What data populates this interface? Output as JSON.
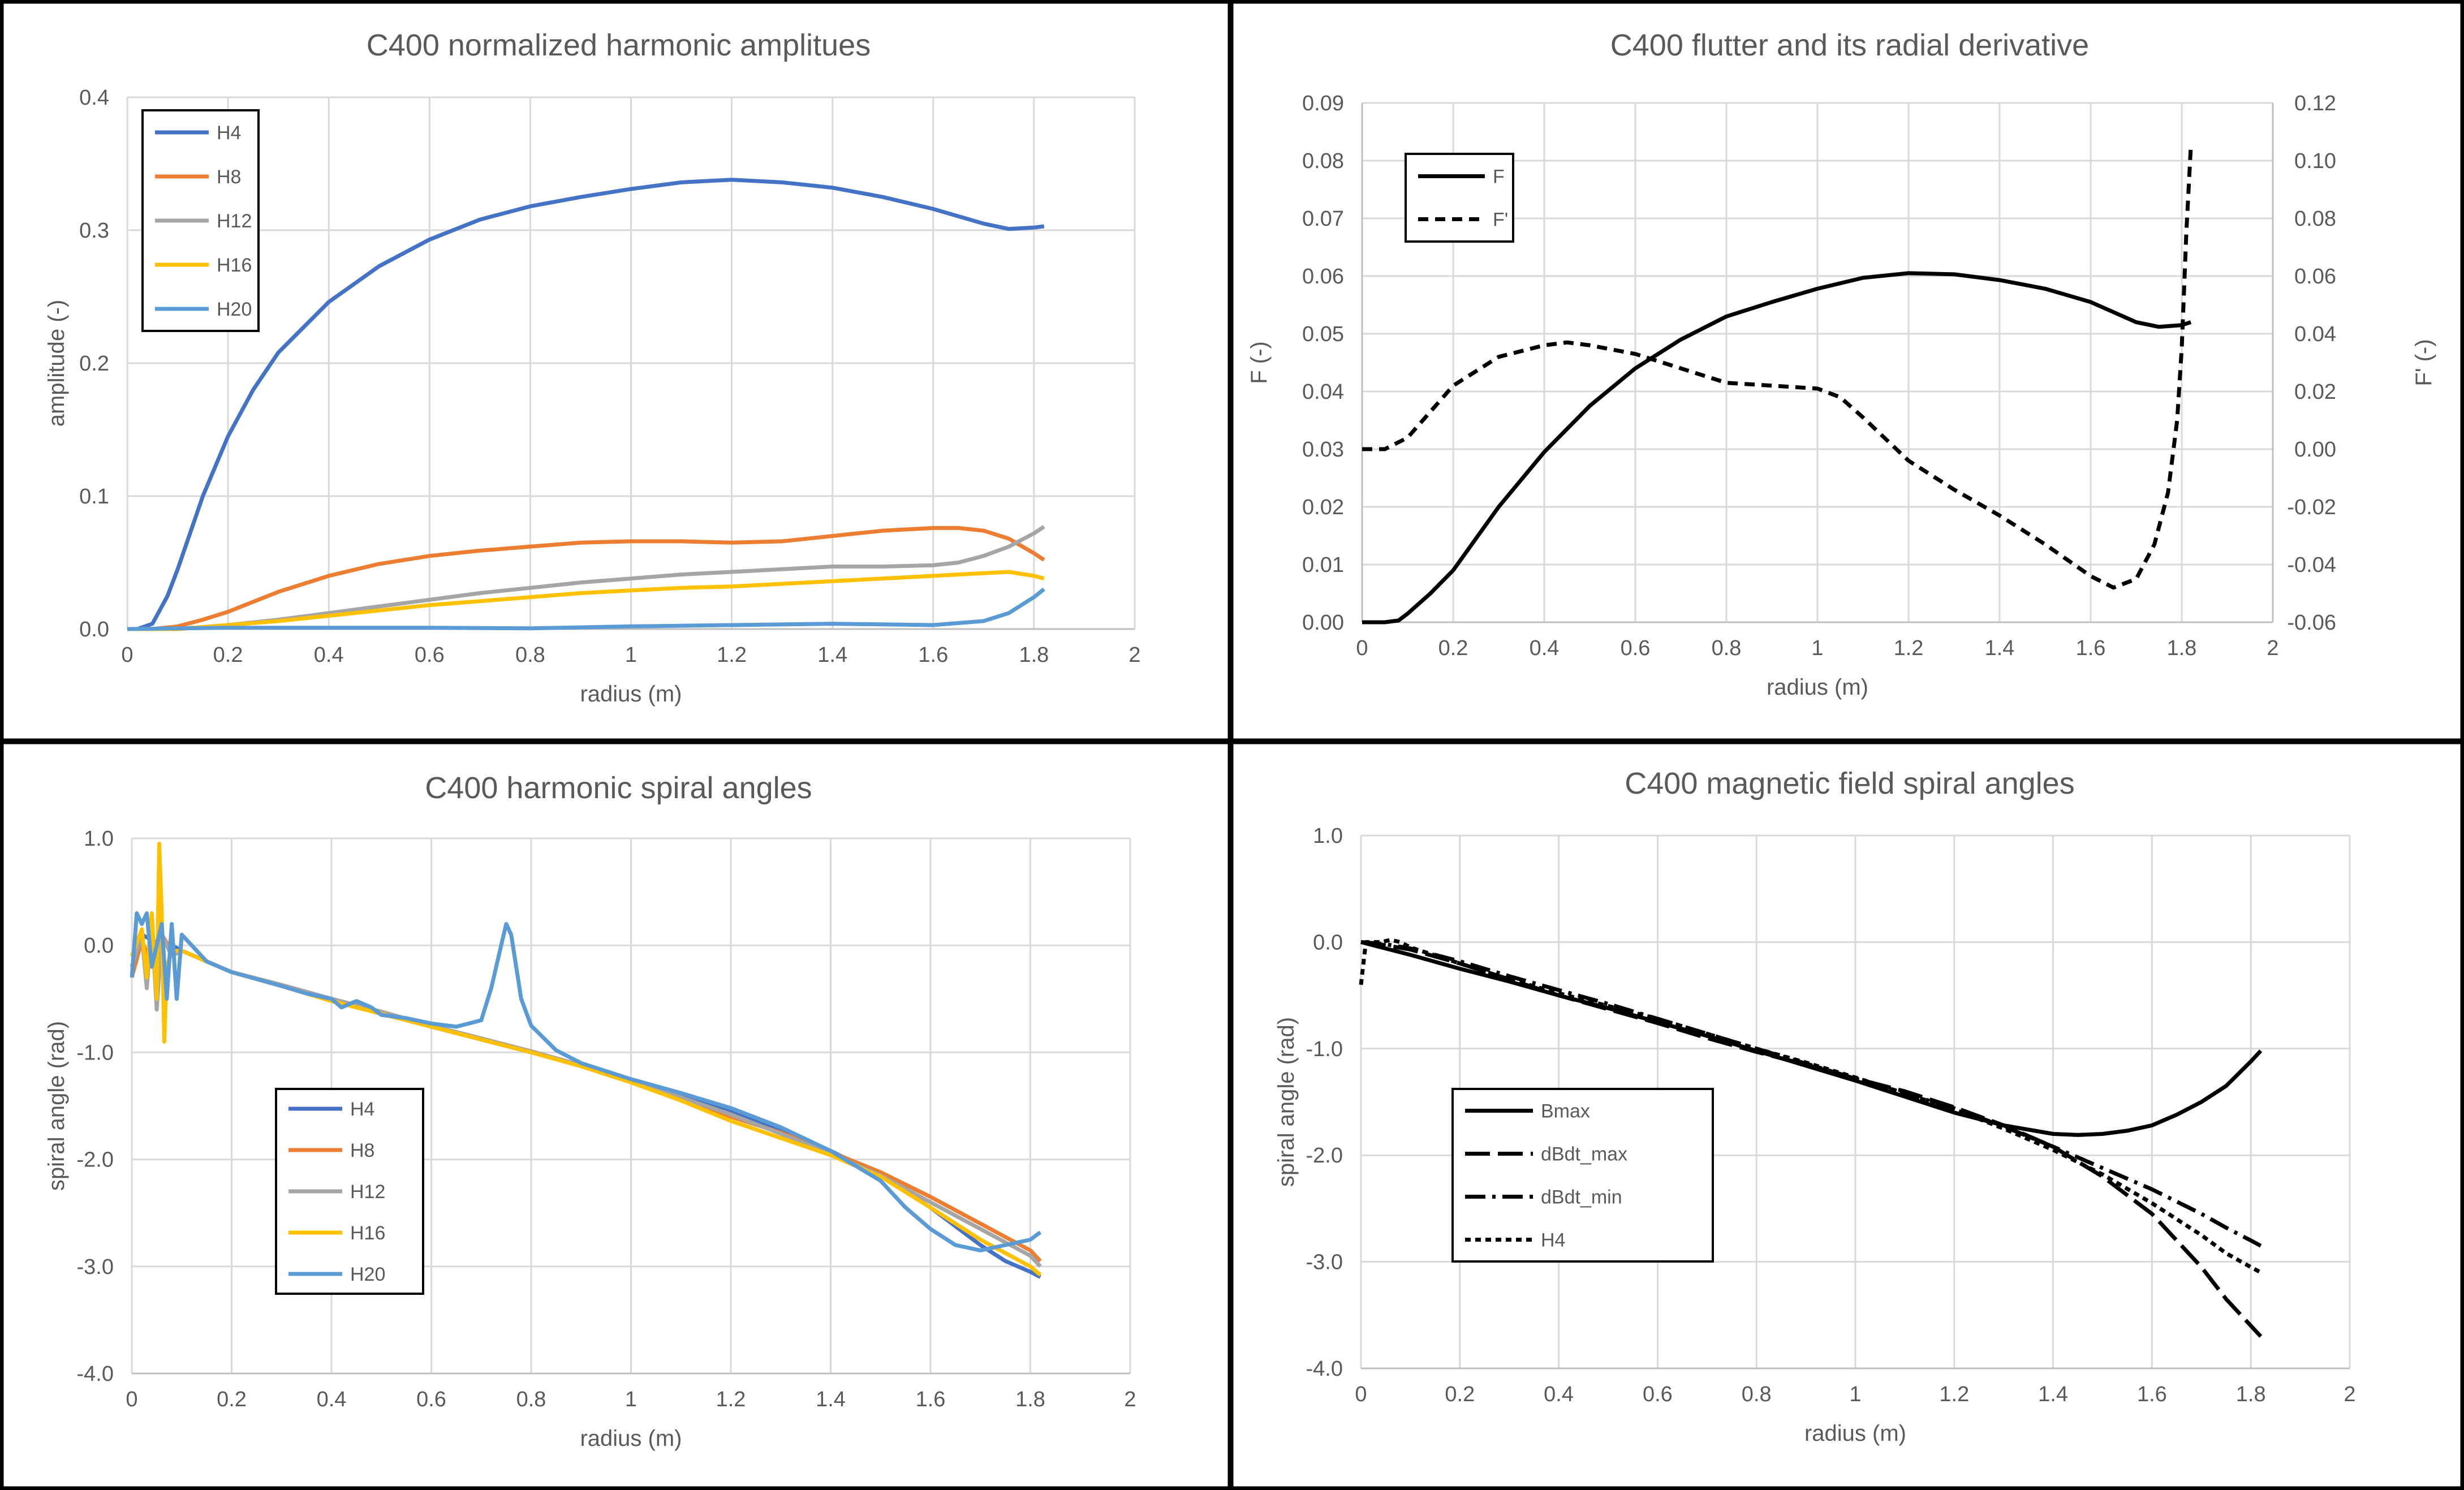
{
  "colors": {
    "H4": "#4472C4",
    "H8": "#ED7D31",
    "H12": "#A5A5A5",
    "H16": "#FFC000",
    "H20": "#5B9BD5",
    "black": "#000000"
  },
  "chart_data": [
    {
      "type": "line",
      "title": "C400 normalized harmonic amplitues",
      "xlabel": "radius (m)",
      "ylabel": "amplitude (-)",
      "xlim": [
        0,
        2
      ],
      "ylim": [
        0,
        0.4
      ],
      "xticks": [
        "0",
        "0.2",
        "0.4",
        "0.6",
        "0.8",
        "1",
        "1.2",
        "1.4",
        "1.6",
        "1.8",
        "2"
      ],
      "yticks": [
        "0.0",
        "0.1",
        "0.2",
        "0.3",
        "0.4"
      ],
      "legend": "top-left",
      "series": [
        {
          "name": "H4",
          "color": "#4472C4",
          "x": [
            0,
            0.02,
            0.05,
            0.08,
            0.1,
            0.15,
            0.2,
            0.25,
            0.3,
            0.4,
            0.5,
            0.6,
            0.7,
            0.8,
            0.9,
            1.0,
            1.1,
            1.2,
            1.3,
            1.4,
            1.5,
            1.6,
            1.7,
            1.75,
            1.8,
            1.82
          ],
          "y": [
            0,
            0,
            0.004,
            0.025,
            0.045,
            0.1,
            0.145,
            0.18,
            0.208,
            0.246,
            0.273,
            0.293,
            0.308,
            0.318,
            0.325,
            0.331,
            0.336,
            0.338,
            0.336,
            0.332,
            0.325,
            0.316,
            0.305,
            0.301,
            0.302,
            0.303
          ]
        },
        {
          "name": "H8",
          "color": "#ED7D31",
          "x": [
            0,
            0.05,
            0.1,
            0.15,
            0.2,
            0.3,
            0.4,
            0.5,
            0.6,
            0.7,
            0.8,
            0.9,
            1.0,
            1.1,
            1.2,
            1.3,
            1.4,
            1.5,
            1.6,
            1.65,
            1.7,
            1.75,
            1.8,
            1.82
          ],
          "y": [
            0,
            0,
            0.002,
            0.007,
            0.013,
            0.028,
            0.04,
            0.049,
            0.055,
            0.059,
            0.062,
            0.065,
            0.066,
            0.066,
            0.065,
            0.066,
            0.07,
            0.074,
            0.076,
            0.076,
            0.074,
            0.068,
            0.057,
            0.052
          ]
        },
        {
          "name": "H12",
          "color": "#A5A5A5",
          "x": [
            0,
            0.1,
            0.2,
            0.3,
            0.4,
            0.5,
            0.6,
            0.7,
            0.8,
            0.9,
            1.0,
            1.1,
            1.2,
            1.3,
            1.4,
            1.5,
            1.6,
            1.65,
            1.7,
            1.75,
            1.8,
            1.82
          ],
          "y": [
            0,
            0,
            0.003,
            0.007,
            0.012,
            0.017,
            0.022,
            0.027,
            0.031,
            0.035,
            0.038,
            0.041,
            0.043,
            0.045,
            0.047,
            0.047,
            0.048,
            0.05,
            0.055,
            0.062,
            0.072,
            0.077
          ]
        },
        {
          "name": "H16",
          "color": "#FFC000",
          "x": [
            0,
            0.1,
            0.2,
            0.3,
            0.4,
            0.5,
            0.6,
            0.7,
            0.8,
            0.9,
            1.0,
            1.1,
            1.2,
            1.3,
            1.4,
            1.5,
            1.6,
            1.7,
            1.75,
            1.8,
            1.82
          ],
          "y": [
            0,
            0,
            0.003,
            0.006,
            0.01,
            0.014,
            0.018,
            0.021,
            0.024,
            0.027,
            0.029,
            0.031,
            0.032,
            0.034,
            0.036,
            0.038,
            0.04,
            0.042,
            0.043,
            0.04,
            0.038
          ]
        },
        {
          "name": "H20",
          "color": "#5B9BD5",
          "x": [
            0,
            0.2,
            0.4,
            0.6,
            0.8,
            1.0,
            1.2,
            1.4,
            1.6,
            1.7,
            1.75,
            1.8,
            1.82
          ],
          "y": [
            0,
            0.001,
            0.001,
            0.001,
            0.0005,
            0.002,
            0.003,
            0.004,
            0.003,
            0.006,
            0.012,
            0.024,
            0.03
          ]
        }
      ]
    },
    {
      "type": "line",
      "title": "C400 flutter and its radial derivative",
      "xlabel": "radius (m)",
      "ylabel": "F (-)",
      "y2label": "F' (-)",
      "xlim": [
        0,
        2
      ],
      "ylim": [
        0,
        0.09
      ],
      "y2lim": [
        -0.06,
        0.12
      ],
      "xticks": [
        "0",
        "0.2",
        "0.4",
        "0.6",
        "0.8",
        "1",
        "1.2",
        "1.4",
        "1.6",
        "1.8",
        "2"
      ],
      "yticks": [
        "0.00",
        "0.01",
        "0.02",
        "0.03",
        "0.04",
        "0.05",
        "0.06",
        "0.07",
        "0.08",
        "0.09"
      ],
      "y2ticks": [
        "-0.06",
        "-0.04",
        "-0.02",
        "0.00",
        "0.02",
        "0.04",
        "0.06",
        "0.08",
        "0.10",
        "0.12"
      ],
      "legend": "top-left",
      "series": [
        {
          "name": "F",
          "color": "#000000",
          "dash": "solid",
          "axis": "left",
          "x": [
            0,
            0.05,
            0.08,
            0.1,
            0.15,
            0.2,
            0.3,
            0.4,
            0.5,
            0.6,
            0.7,
            0.8,
            0.9,
            1.0,
            1.1,
            1.2,
            1.3,
            1.4,
            1.5,
            1.6,
            1.7,
            1.75,
            1.8,
            1.82
          ],
          "y": [
            0,
            0,
            0.0003,
            0.0015,
            0.005,
            0.009,
            0.02,
            0.0295,
            0.0375,
            0.044,
            0.049,
            0.053,
            0.0555,
            0.0578,
            0.0597,
            0.0605,
            0.0603,
            0.0593,
            0.0578,
            0.0555,
            0.052,
            0.0512,
            0.0515,
            0.052
          ]
        },
        {
          "name": "F'",
          "color": "#000000",
          "dash": "dashed",
          "axis": "right",
          "x": [
            0,
            0.05,
            0.1,
            0.15,
            0.2,
            0.3,
            0.4,
            0.45,
            0.5,
            0.6,
            0.7,
            0.8,
            0.9,
            1.0,
            1.05,
            1.1,
            1.2,
            1.3,
            1.4,
            1.5,
            1.6,
            1.65,
            1.7,
            1.74,
            1.77,
            1.79,
            1.8,
            1.81,
            1.82
          ],
          "y": [
            0,
            0,
            0.004,
            0.013,
            0.022,
            0.032,
            0.036,
            0.037,
            0.036,
            0.033,
            0.028,
            0.023,
            0.022,
            0.021,
            0.018,
            0.011,
            -0.004,
            -0.014,
            -0.023,
            -0.033,
            -0.044,
            -0.048,
            -0.045,
            -0.033,
            -0.015,
            0.01,
            0.035,
            0.075,
            0.105
          ]
        }
      ]
    },
    {
      "type": "line",
      "title": "C400 harmonic spiral angles",
      "xlabel": "radius (m)",
      "ylabel": "spiral angle (rad)",
      "xlim": [
        0,
        2
      ],
      "ylim": [
        -4,
        1
      ],
      "xticks": [
        "0",
        "0.2",
        "0.4",
        "0.6",
        "0.8",
        "1",
        "1.2",
        "1.4",
        "1.6",
        "1.8",
        "2"
      ],
      "yticks": [
        "-4.0",
        "-3.0",
        "-2.0",
        "-1.0",
        "0.0",
        "1.0"
      ],
      "legend": "center-left",
      "series": [
        {
          "name": "H4",
          "color": "#4472C4",
          "x": [
            0,
            0.02,
            0.04,
            0.06,
            0.08,
            0.1,
            0.15,
            0.2,
            0.3,
            0.4,
            0.5,
            0.6,
            0.7,
            0.8,
            0.9,
            1.0,
            1.1,
            1.2,
            1.3,
            1.4,
            1.5,
            1.6,
            1.7,
            1.75,
            1.8,
            1.82
          ],
          "y": [
            -0.2,
            0.1,
            0.05,
            0.0,
            0.0,
            -0.05,
            -0.15,
            -0.25,
            -0.37,
            -0.5,
            -0.63,
            -0.76,
            -0.88,
            -1.0,
            -1.12,
            -1.26,
            -1.4,
            -1.55,
            -1.72,
            -1.92,
            -2.15,
            -2.45,
            -2.8,
            -2.95,
            -3.05,
            -3.1
          ]
        },
        {
          "name": "H8",
          "color": "#ED7D31",
          "x": [
            0,
            0.02,
            0.04,
            0.06,
            0.08,
            0.1,
            0.2,
            0.3,
            0.4,
            0.5,
            0.6,
            0.7,
            0.8,
            0.9,
            1.0,
            1.1,
            1.2,
            1.3,
            1.4,
            1.5,
            1.6,
            1.7,
            1.8,
            1.82
          ],
          "y": [
            -0.3,
            0.05,
            -0.2,
            0.1,
            -0.05,
            -0.05,
            -0.25,
            -0.37,
            -0.5,
            -0.62,
            -0.75,
            -0.87,
            -0.99,
            -1.12,
            -1.26,
            -1.42,
            -1.6,
            -1.75,
            -1.93,
            -2.12,
            -2.35,
            -2.6,
            -2.85,
            -2.95
          ]
        },
        {
          "name": "H12",
          "color": "#A5A5A5",
          "x": [
            0,
            0.02,
            0.03,
            0.04,
            0.05,
            0.06,
            0.08,
            0.1,
            0.2,
            0.3,
            0.4,
            0.5,
            0.6,
            0.7,
            0.8,
            0.9,
            1.0,
            1.1,
            1.2,
            1.3,
            1.4,
            1.5,
            1.6,
            1.7,
            1.8,
            1.82
          ],
          "y": [
            -0.2,
            0.1,
            -0.4,
            0.2,
            -0.6,
            0.1,
            -0.1,
            -0.05,
            -0.25,
            -0.37,
            -0.5,
            -0.62,
            -0.75,
            -0.87,
            -0.99,
            -1.12,
            -1.26,
            -1.42,
            -1.58,
            -1.76,
            -1.95,
            -2.15,
            -2.4,
            -2.65,
            -2.9,
            -3.0
          ]
        },
        {
          "name": "H16",
          "color": "#FFC000",
          "x": [
            0,
            0.02,
            0.03,
            0.04,
            0.05,
            0.055,
            0.06,
            0.065,
            0.07,
            0.08,
            0.1,
            0.2,
            0.3,
            0.4,
            0.5,
            0.6,
            0.7,
            0.8,
            0.9,
            1.0,
            1.1,
            1.2,
            1.3,
            1.4,
            1.5,
            1.6,
            1.7,
            1.8,
            1.82
          ],
          "y": [
            -0.1,
            0.15,
            -0.3,
            0.3,
            -0.5,
            0.95,
            0.3,
            -0.9,
            -0.2,
            -0.05,
            -0.05,
            -0.25,
            -0.38,
            -0.52,
            -0.64,
            -0.76,
            -0.88,
            -1.0,
            -1.13,
            -1.28,
            -1.45,
            -1.64,
            -1.8,
            -1.96,
            -2.16,
            -2.45,
            -2.75,
            -3.0,
            -3.08
          ]
        },
        {
          "name": "H20",
          "color": "#5B9BD5",
          "x": [
            0,
            0.01,
            0.02,
            0.03,
            0.04,
            0.05,
            0.06,
            0.07,
            0.08,
            0.09,
            0.1,
            0.11,
            0.15,
            0.2,
            0.3,
            0.35,
            0.4,
            0.42,
            0.45,
            0.48,
            0.5,
            0.55,
            0.6,
            0.65,
            0.7,
            0.72,
            0.74,
            0.75,
            0.76,
            0.78,
            0.8,
            0.85,
            0.9,
            1.0,
            1.1,
            1.2,
            1.3,
            1.4,
            1.5,
            1.55,
            1.6,
            1.65,
            1.7,
            1.75,
            1.8,
            1.82
          ],
          "y": [
            -0.3,
            0.3,
            0.2,
            0.3,
            -0.2,
            0.0,
            0.2,
            -0.5,
            0.2,
            -0.5,
            0.1,
            0.05,
            -0.15,
            -0.25,
            -0.38,
            -0.45,
            -0.5,
            -0.58,
            -0.52,
            -0.58,
            -0.65,
            -0.68,
            -0.73,
            -0.76,
            -0.7,
            -0.4,
            0.0,
            0.2,
            0.1,
            -0.5,
            -0.75,
            -0.98,
            -1.1,
            -1.25,
            -1.38,
            -1.52,
            -1.7,
            -1.92,
            -2.2,
            -2.45,
            -2.65,
            -2.8,
            -2.85,
            -2.8,
            -2.75,
            -2.68
          ]
        }
      ]
    },
    {
      "type": "line",
      "title": "C400 magnetic field spiral angles",
      "xlabel": "radius (m)",
      "ylabel": "spiral angle (rad)",
      "xlim": [
        0,
        2
      ],
      "ylim": [
        -4,
        1
      ],
      "xticks": [
        "0",
        "0.2",
        "0.4",
        "0.6",
        "0.8",
        "1",
        "1.2",
        "1.4",
        "1.6",
        "1.8",
        "2"
      ],
      "yticks": [
        "-4.0",
        "-3.0",
        "-2.0",
        "-1.0",
        "0.0",
        "1.0"
      ],
      "legend": "center-left",
      "series": [
        {
          "name": "Bmax",
          "color": "#000000",
          "dash": "solid",
          "x": [
            0,
            0.1,
            0.2,
            0.3,
            0.4,
            0.5,
            0.6,
            0.7,
            0.8,
            0.9,
            1.0,
            1.1,
            1.2,
            1.3,
            1.4,
            1.45,
            1.5,
            1.55,
            1.6,
            1.65,
            1.7,
            1.75,
            1.8,
            1.82
          ],
          "y": [
            0,
            -0.12,
            -0.25,
            -0.37,
            -0.5,
            -0.62,
            -0.75,
            -0.88,
            -1.02,
            -1.16,
            -1.3,
            -1.45,
            -1.6,
            -1.72,
            -1.8,
            -1.81,
            -1.8,
            -1.77,
            -1.72,
            -1.62,
            -1.5,
            -1.35,
            -1.12,
            -1.02
          ]
        },
        {
          "name": "dBdt_max",
          "color": "#000000",
          "dash": "longdash",
          "x": [
            0,
            0.05,
            0.1,
            0.2,
            0.3,
            0.4,
            0.5,
            0.6,
            0.7,
            0.8,
            0.9,
            1.0,
            1.1,
            1.2,
            1.3,
            1.4,
            1.5,
            1.6,
            1.7,
            1.75,
            1.8,
            1.82
          ],
          "y": [
            0,
            -0.03,
            -0.07,
            -0.2,
            -0.35,
            -0.5,
            -0.63,
            -0.76,
            -0.9,
            -1.03,
            -1.15,
            -1.28,
            -1.4,
            -1.55,
            -1.72,
            -1.92,
            -2.2,
            -2.55,
            -3.05,
            -3.35,
            -3.6,
            -3.7
          ]
        },
        {
          "name": "dBdt_min",
          "color": "#000000",
          "dash": "dashdot",
          "x": [
            0,
            0.05,
            0.1,
            0.2,
            0.3,
            0.4,
            0.5,
            0.6,
            0.7,
            0.8,
            0.9,
            1.0,
            1.1,
            1.2,
            1.3,
            1.4,
            1.5,
            1.6,
            1.7,
            1.75,
            1.8,
            1.82
          ],
          "y": [
            0,
            -0.02,
            -0.06,
            -0.18,
            -0.32,
            -0.45,
            -0.58,
            -0.72,
            -0.86,
            -1.0,
            -1.14,
            -1.28,
            -1.42,
            -1.56,
            -1.73,
            -1.92,
            -2.12,
            -2.32,
            -2.55,
            -2.68,
            -2.8,
            -2.85
          ]
        },
        {
          "name": "H4",
          "color": "#000000",
          "dash": "dotted",
          "x": [
            0,
            0.01,
            0.02,
            0.04,
            0.06,
            0.08,
            0.1,
            0.2,
            0.3,
            0.4,
            0.5,
            0.6,
            0.7,
            0.8,
            0.9,
            1.0,
            1.1,
            1.2,
            1.3,
            1.4,
            1.5,
            1.6,
            1.7,
            1.75,
            1.8,
            1.82
          ],
          "y": [
            -0.4,
            0.0,
            0.0,
            0.0,
            0.02,
            0.0,
            -0.05,
            -0.2,
            -0.35,
            -0.48,
            -0.6,
            -0.72,
            -0.86,
            -1.0,
            -1.13,
            -1.27,
            -1.42,
            -1.57,
            -1.75,
            -1.95,
            -2.18,
            -2.45,
            -2.75,
            -2.92,
            -3.05,
            -3.1
          ]
        }
      ]
    }
  ]
}
